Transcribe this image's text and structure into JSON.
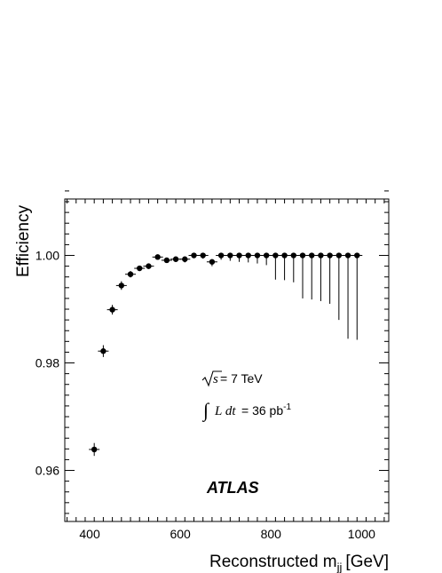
{
  "chart_data": {
    "type": "scatter",
    "xlabel": "Reconstructed m",
    "xlabel_sub": "jj",
    "xlabel_unit": "[GeV]",
    "ylabel": "Efficiency",
    "xlim": [
      345,
      1060
    ],
    "ylim": [
      0.9505,
      1.0105
    ],
    "x_ticks": [
      400,
      600,
      800,
      1000
    ],
    "y_ticks": [
      0.96,
      0.98,
      1.0
    ],
    "y_tick_labels": [
      "0.96",
      "0.98",
      "1.00"
    ],
    "annotations": {
      "sqrt_s": "s",
      "energy": " = 7 TeV",
      "lumi_label": "L dt",
      "lumi_value": " = 36 pb",
      "lumi_exp": "-1",
      "experiment": "ATLAS"
    },
    "points": [
      {
        "x": 410,
        "y": 0.9639,
        "err_up": 0.0012,
        "err_down": 0.0012
      },
      {
        "x": 430,
        "y": 0.9822,
        "err_up": 0.0011,
        "err_down": 0.0011
      },
      {
        "x": 450,
        "y": 0.9899,
        "err_up": 0.0009,
        "err_down": 0.0009
      },
      {
        "x": 470,
        "y": 0.9944,
        "err_up": 0.0008,
        "err_down": 0.0008
      },
      {
        "x": 490,
        "y": 0.9965,
        "err_up": 0.0006,
        "err_down": 0.0006
      },
      {
        "x": 510,
        "y": 0.9976,
        "err_up": 0.0005,
        "err_down": 0.0005
      },
      {
        "x": 530,
        "y": 0.998,
        "err_up": 0.0005,
        "err_down": 0.0005
      },
      {
        "x": 550,
        "y": 0.9997,
        "err_up": 0.0002,
        "err_down": 0.0004
      },
      {
        "x": 570,
        "y": 0.9991,
        "err_up": 0.0004,
        "err_down": 0.0005
      },
      {
        "x": 590,
        "y": 0.9993,
        "err_up": 0.0004,
        "err_down": 0.0005
      },
      {
        "x": 610,
        "y": 0.9993,
        "err_up": 0.0004,
        "err_down": 0.0006
      },
      {
        "x": 630,
        "y": 1.0,
        "err_up": 0.0,
        "err_down": 0.0005
      },
      {
        "x": 650,
        "y": 1.0,
        "err_up": 0.0,
        "err_down": 0.0006
      },
      {
        "x": 670,
        "y": 0.9988,
        "err_up": 0.0005,
        "err_down": 0.0008
      },
      {
        "x": 690,
        "y": 1.0,
        "err_up": 0.0,
        "err_down": 0.0008
      },
      {
        "x": 710,
        "y": 1.0,
        "err_up": 0.0,
        "err_down": 0.001
      },
      {
        "x": 730,
        "y": 1.0,
        "err_up": 0.0,
        "err_down": 0.0012
      },
      {
        "x": 750,
        "y": 1.0,
        "err_up": 0.0,
        "err_down": 0.0013
      },
      {
        "x": 770,
        "y": 1.0,
        "err_up": 0.0,
        "err_down": 0.0015
      },
      {
        "x": 790,
        "y": 1.0,
        "err_up": 0.0,
        "err_down": 0.0018
      },
      {
        "x": 810,
        "y": 1.0,
        "err_up": 0.0,
        "err_down": 0.0045
      },
      {
        "x": 830,
        "y": 1.0,
        "err_up": 0.0,
        "err_down": 0.0046
      },
      {
        "x": 850,
        "y": 1.0,
        "err_up": 0.0,
        "err_down": 0.005
      },
      {
        "x": 870,
        "y": 1.0,
        "err_up": 0.0,
        "err_down": 0.008
      },
      {
        "x": 890,
        "y": 1.0,
        "err_up": 0.0,
        "err_down": 0.0082
      },
      {
        "x": 910,
        "y": 1.0,
        "err_up": 0.0,
        "err_down": 0.0085
      },
      {
        "x": 930,
        "y": 1.0,
        "err_up": 0.0,
        "err_down": 0.009
      },
      {
        "x": 950,
        "y": 1.0,
        "err_up": 0.0,
        "err_down": 0.012
      },
      {
        "x": 970,
        "y": 1.0,
        "err_up": 0.0,
        "err_down": 0.0155
      },
      {
        "x": 990,
        "y": 1.0,
        "err_up": 0.0,
        "err_down": 0.0157
      }
    ]
  }
}
